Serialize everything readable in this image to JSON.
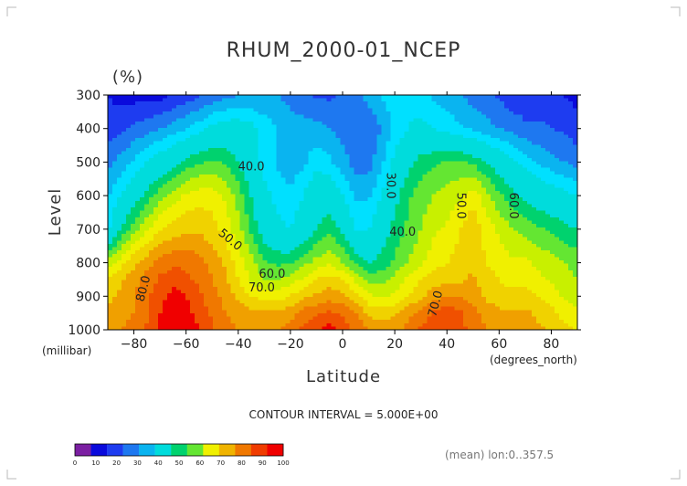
{
  "chart_data": {
    "type": "heatmap",
    "subtype": "filled-contour",
    "title": "RHUM_2000-01_NCEP",
    "units": "(%)",
    "xlabel": "Latitude",
    "xunit": "(degrees_north)",
    "ylabel": "Level",
    "yunit": "(millibar)",
    "xlim": [
      -90,
      90
    ],
    "ylim": [
      1000,
      300
    ],
    "x_ticks": [
      -80,
      -60,
      -40,
      -20,
      0,
      20,
      40,
      60,
      80
    ],
    "y_ticks": [
      300,
      400,
      500,
      600,
      700,
      800,
      900,
      1000
    ],
    "contour_interval_text": "CONTOUR INTERVAL = 5.000E+00",
    "contour_labels": [
      {
        "value": "40.0",
        "lat": -35,
        "level": 525
      },
      {
        "value": "30.0",
        "lat": 17,
        "level": 570
      },
      {
        "value": "40.0",
        "lat": 23,
        "level": 720
      },
      {
        "value": "50.0",
        "lat": 44,
        "level": 630
      },
      {
        "value": "60.0",
        "lat": 64,
        "level": 630
      },
      {
        "value": "50.0",
        "lat": -44,
        "level": 740
      },
      {
        "value": "60.0",
        "lat": -27,
        "level": 845
      },
      {
        "value": "70.0",
        "lat": -31,
        "level": 885
      },
      {
        "value": "80.0",
        "lat": -75,
        "level": 880
      },
      {
        "value": "70.0",
        "lat": 37,
        "level": 925
      }
    ],
    "levels": [
      {
        "level": 300,
        "values": [
          20,
          18,
          18,
          18,
          18,
          20,
          22,
          24,
          26,
          28,
          30,
          30,
          30,
          30,
          28,
          26,
          24,
          24,
          26,
          28,
          32,
          36,
          38,
          38,
          36,
          34,
          32,
          30,
          28,
          26,
          24,
          22,
          22,
          22,
          22,
          20,
          18
        ]
      },
      {
        "level": 400,
        "values": [
          22,
          24,
          26,
          28,
          30,
          32,
          35,
          38,
          42,
          44,
          44,
          42,
          38,
          35,
          33,
          32,
          32,
          30,
          28,
          26,
          26,
          30,
          36,
          40,
          42,
          40,
          38,
          36,
          34,
          32,
          30,
          28,
          26,
          26,
          25,
          24,
          22
        ]
      },
      {
        "level": 500,
        "values": [
          28,
          32,
          36,
          40,
          44,
          48,
          52,
          54,
          56,
          54,
          50,
          45,
          38,
          34,
          32,
          34,
          38,
          36,
          32,
          28,
          28,
          34,
          42,
          48,
          52,
          54,
          56,
          56,
          54,
          50,
          46,
          42,
          38,
          34,
          32,
          30,
          28
        ]
      },
      {
        "level": 600,
        "values": [
          34,
          40,
          46,
          52,
          58,
          62,
          66,
          68,
          68,
          64,
          58,
          50,
          42,
          38,
          36,
          40,
          46,
          46,
          40,
          34,
          34,
          40,
          48,
          54,
          58,
          60,
          62,
          64,
          68,
          62,
          56,
          52,
          48,
          46,
          44,
          42,
          40
        ]
      },
      {
        "level": 700,
        "values": [
          38,
          50,
          58,
          64,
          70,
          72,
          74,
          74,
          72,
          68,
          62,
          54,
          46,
          42,
          40,
          44,
          50,
          54,
          48,
          40,
          40,
          46,
          52,
          56,
          60,
          64,
          66,
          70,
          74,
          68,
          64,
          60,
          58,
          56,
          54,
          52,
          50
        ]
      },
      {
        "level": 800,
        "values": [
          62,
          68,
          74,
          78,
          82,
          84,
          84,
          82,
          78,
          74,
          68,
          62,
          56,
          54,
          54,
          58,
          62,
          64,
          60,
          54,
          50,
          52,
          56,
          60,
          64,
          68,
          70,
          72,
          74,
          70,
          68,
          66,
          66,
          64,
          62,
          60,
          58
        ]
      },
      {
        "level": 850,
        "values": [
          70,
          74,
          78,
          82,
          86,
          88,
          86,
          84,
          80,
          76,
          70,
          64,
          60,
          60,
          62,
          66,
          70,
          72,
          70,
          64,
          58,
          58,
          62,
          66,
          70,
          72,
          74,
          74,
          76,
          72,
          70,
          68,
          68,
          66,
          64,
          62,
          60
        ]
      },
      {
        "level": 900,
        "values": [
          74,
          76,
          80,
          84,
          88,
          92,
          90,
          86,
          82,
          78,
          74,
          70,
          68,
          68,
          70,
          74,
          76,
          78,
          76,
          72,
          66,
          64,
          66,
          70,
          74,
          78,
          80,
          80,
          78,
          74,
          72,
          72,
          72,
          70,
          68,
          64,
          62
        ]
      },
      {
        "level": 950,
        "values": [
          76,
          78,
          80,
          84,
          90,
          94,
          92,
          88,
          84,
          80,
          78,
          76,
          76,
          76,
          78,
          82,
          84,
          86,
          84,
          80,
          74,
          72,
          74,
          78,
          82,
          86,
          88,
          86,
          82,
          78,
          76,
          76,
          76,
          74,
          72,
          68,
          66
        ]
      },
      {
        "level": 1000,
        "values": [
          78,
          80,
          82,
          86,
          92,
          96,
          94,
          90,
          86,
          82,
          80,
          80,
          80,
          80,
          82,
          86,
          90,
          92,
          88,
          84,
          80,
          78,
          78,
          82,
          86,
          88,
          88,
          86,
          84,
          80,
          78,
          78,
          78,
          76,
          74,
          72,
          70
        ]
      }
    ],
    "colorbar": {
      "boundaries": [
        0,
        10,
        20,
        30,
        40,
        50,
        60,
        70,
        80,
        90,
        100
      ],
      "colors": [
        "#7b1fa2",
        "#0a0adc",
        "#1e3cf0",
        "#1e78f0",
        "#0ab4f0",
        "#00dcdc",
        "#00d26e",
        "#64e632",
        "#f0f000",
        "#f0b400",
        "#f07800",
        "#f03c00",
        "#f00000"
      ],
      "labels": [
        "0",
        "10",
        "20",
        "30",
        "40",
        "50",
        "60",
        "70",
        "80",
        "90",
        "100"
      ]
    },
    "fill_palette": [
      {
        "min": 0,
        "max": 10,
        "color": "#7b1fa2"
      },
      {
        "min": 10,
        "max": 20,
        "color": "#0a0adc"
      },
      {
        "min": 20,
        "max": 25,
        "color": "#1e3cf0"
      },
      {
        "min": 25,
        "max": 30,
        "color": "#1e78f0"
      },
      {
        "min": 30,
        "max": 35,
        "color": "#0ab4f0"
      },
      {
        "min": 35,
        "max": 40,
        "color": "#00e0ff"
      },
      {
        "min": 40,
        "max": 50,
        "color": "#00dcdc"
      },
      {
        "min": 50,
        "max": 55,
        "color": "#00d26e"
      },
      {
        "min": 55,
        "max": 60,
        "color": "#64e632"
      },
      {
        "min": 60,
        "max": 65,
        "color": "#c8f000"
      },
      {
        "min": 65,
        "max": 70,
        "color": "#f0f000"
      },
      {
        "min": 70,
        "max": 75,
        "color": "#f0d200"
      },
      {
        "min": 75,
        "max": 80,
        "color": "#f0a000"
      },
      {
        "min": 80,
        "max": 85,
        "color": "#f07800"
      },
      {
        "min": 85,
        "max": 90,
        "color": "#f05000"
      },
      {
        "min": 90,
        "max": 100,
        "color": "#f00000"
      }
    ],
    "footnote": "(mean) lon:0..357.5"
  }
}
